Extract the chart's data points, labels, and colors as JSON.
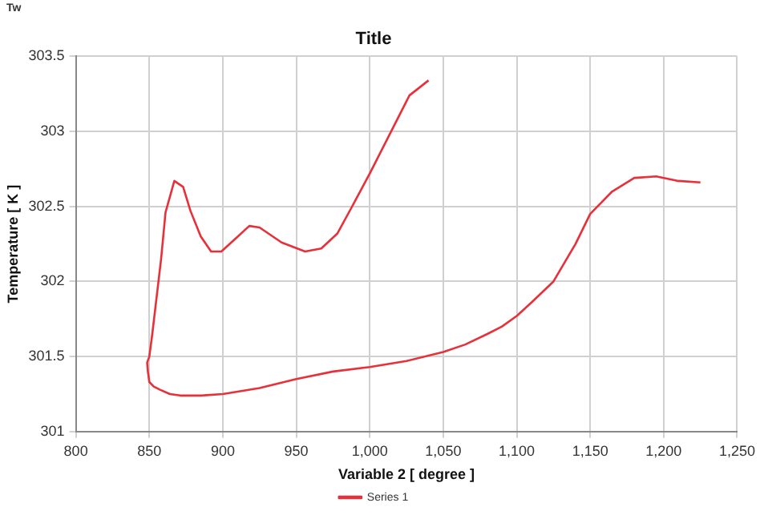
{
  "chart_data": {
    "type": "line",
    "title": "Title",
    "xlabel": "Variable 2 [ degree ]",
    "ylabel": "Temperature [ K ]",
    "annotations": [
      "Tw"
    ],
    "x": [
      1040,
      1027,
      1000,
      988,
      978,
      967,
      956,
      940,
      925,
      918,
      908,
      899,
      892,
      885,
      878,
      873,
      867,
      861,
      858,
      855,
      852,
      850,
      848.5,
      849,
      850,
      853,
      857,
      864,
      871,
      885,
      900,
      925,
      950,
      975,
      1000,
      1025,
      1050,
      1065,
      1080,
      1090,
      1100,
      1110,
      1125,
      1140,
      1150,
      1165,
      1180,
      1195,
      1210,
      1225
    ],
    "series": [
      {
        "name": "Series 1",
        "color": "#e8303a",
        "values": [
          303.34,
          303.24,
          302.72,
          302.5,
          302.32,
          302.22,
          302.2,
          302.26,
          302.36,
          302.37,
          302.28,
          302.2,
          302.2,
          302.3,
          302.47,
          302.63,
          302.67,
          302.46,
          302.15,
          301.9,
          301.65,
          301.5,
          301.46,
          301.4,
          301.33,
          301.3,
          301.28,
          301.25,
          301.24,
          301.24,
          301.25,
          301.29,
          301.35,
          301.4,
          301.43,
          301.47,
          301.53,
          301.58,
          301.65,
          301.7,
          301.77,
          301.86,
          302.0,
          302.25,
          302.45,
          302.6,
          302.69,
          302.7,
          302.67,
          302.66
        ]
      }
    ],
    "xlim": [
      800,
      1250
    ],
    "xticks": [
      800,
      850,
      900,
      950,
      {
        "value": 1000,
        "label": "1,000"
      },
      {
        "value": 1050,
        "label": "1,050"
      },
      {
        "value": 1100,
        "label": "1,100"
      },
      {
        "value": 1150,
        "label": "1,150"
      },
      {
        "value": 1200,
        "label": "1,200"
      },
      {
        "value": 1250,
        "label": "1,250"
      }
    ],
    "ylim": [
      301,
      303.5
    ],
    "yticks": [
      301,
      301.5,
      302,
      302.5,
      303,
      303.5
    ],
    "grid": true,
    "legend": "bottom",
    "marker": "none",
    "line_style": "solid"
  }
}
